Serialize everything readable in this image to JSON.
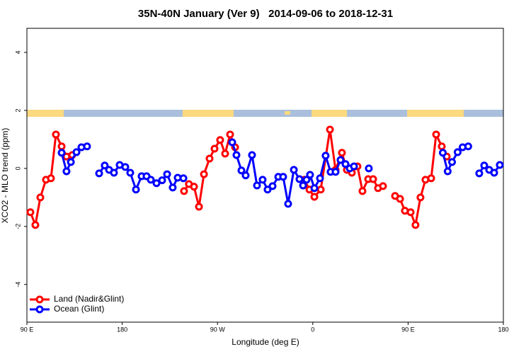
{
  "chart_data": {
    "type": "line",
    "title": "35N-40N January (Ver 9)   2014-09-06 to 2018-12-31",
    "xlabel": "Longitude (deg E)",
    "ylabel": "XCO2 - MLO trend (ppm)",
    "xlim": [
      90,
      540
    ],
    "ylim": [
      -5.3,
      4.83
    ],
    "xticks": [
      {
        "value": 90,
        "label": "90 E"
      },
      180,
      {
        "value": 270,
        "label": "90 W"
      },
      {
        "value": 360,
        "label": "0"
      },
      {
        "value": 450,
        "label": "90 E"
      },
      {
        "value": 540,
        "label": "180"
      }
    ],
    "yticks": [
      -4,
      -2,
      0,
      2,
      4
    ],
    "legend": "bottom-left",
    "series": [
      {
        "name": "Land (Nadir&Glint)",
        "color": "#ff0000",
        "x": [
          93.3,
          98,
          102.7,
          108,
          112.7,
          117.4,
          122.8,
          127.4,
          132.8,
          null,
          238.4,
          243,
          247.8,
          252.5,
          257.2,
          262.5,
          267.2,
          272.5,
          277.2,
          281.9,
          286.6,
          null,
          352.1,
          356.8,
          361.5,
          367.5,
          376.2,
          381.5,
          387.5,
          392.2,
          396.9,
          402.2,
          406.9,
          412.3,
          417,
          421.6,
          426.3,
          null,
          437.7,
          442.4,
          447,
          452.4,
          457,
          461.7,
          466.4,
          471.8,
          476.5,
          481.8,
          486.5
        ],
        "values": [
          -1.51,
          -1.95,
          -1.0,
          -0.39,
          -0.34,
          1.17,
          0.76,
          0.41,
          0.46,
          null,
          -0.78,
          -0.54,
          -0.63,
          -1.32,
          -0.2,
          0.34,
          0.68,
          0.98,
          0.51,
          1.17,
          0.73,
          null,
          -0.39,
          -0.73,
          -0.98,
          -0.73,
          1.34,
          -0.05,
          0.54,
          -0.05,
          -0.15,
          0.07,
          -0.78,
          -0.37,
          -0.37,
          -0.68,
          -0.61,
          null,
          -0.95,
          -1.05,
          -1.46,
          -1.51,
          -1.95,
          -1.0,
          -0.39,
          -0.34,
          1.17,
          0.76,
          0.41
        ]
      },
      {
        "name": "Ocean (Glint)",
        "color": "#0000ff",
        "x": [
          122.8,
          127.4,
          131.5,
          136.8,
          141.5,
          146.8,
          null,
          158.2,
          163.5,
          167.6,
          172.2,
          177.6,
          182.9,
          187.6,
          193,
          198.3,
          203,
          207,
          212.4,
          217.7,
          222.4,
          227.7,
          232.4,
          237.8,
          null,
          283.9,
          287.9,
          292.6,
          296.6,
          302.6,
          307.3,
          312.6,
          317.3,
          322,
          327.4,
          332,
          336.7,
          342.1,
          347.4,
          350.8,
          354.1,
          357.4,
          361.5,
          366.8,
          372.1,
          376.8,
          381.5,
          386.2,
          390.9,
          394.9,
          398.9,
          null,
          412.9,
          null,
          482.8,
          487.4,
          491.5,
          496.8,
          501.5,
          506.8,
          null,
          517.2,
          521.9,
          526.6,
          531.3,
          536.6
        ],
        "values": [
          0.54,
          -0.1,
          0.22,
          0.56,
          0.73,
          0.76,
          null,
          -0.17,
          0.1,
          -0.05,
          -0.15,
          0.12,
          0.05,
          -0.15,
          -0.73,
          -0.27,
          -0.27,
          -0.39,
          -0.51,
          -0.41,
          -0.2,
          -0.66,
          -0.32,
          -0.34,
          null,
          0.9,
          0.46,
          -0.07,
          -0.24,
          0.46,
          -0.59,
          -0.39,
          -0.73,
          -0.61,
          -0.29,
          -0.29,
          -1.22,
          -0.05,
          -0.37,
          -0.59,
          -0.39,
          -0.22,
          -0.68,
          -0.34,
          0.44,
          -0.12,
          -0.12,
          0.29,
          0.15,
          0,
          0.07,
          null,
          0,
          null,
          0.54,
          -0.1,
          0.22,
          0.56,
          0.73,
          0.76,
          null,
          -0.17,
          0.1,
          -0.05,
          -0.15,
          0.12
        ]
      }
    ]
  }
}
